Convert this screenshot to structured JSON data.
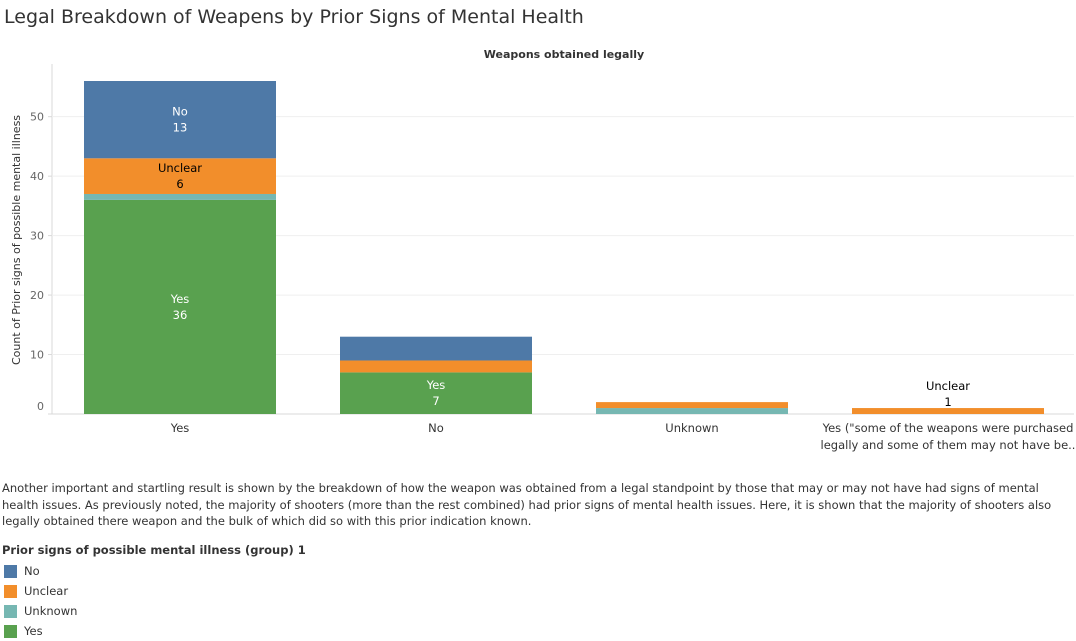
{
  "page": {
    "title": "Legal Breakdown of Weapens by Prior Signs of Mental Health",
    "description": "Another important and startling result is shown by the breakdown of how the weapon was obtained from a legal standpoint by those that may or may not have had signs of mental health issues. As previously noted, the majority of shooters (more than the rest combined) had prior signs of mental health issues. Here, it is shown that the majority of shooters also legally obtained there weapon and the bulk of which did so with this prior indication known."
  },
  "legend": {
    "title": "Prior signs of possible mental illness (group) 1",
    "items": [
      {
        "label": "No",
        "color": "#4e79a7"
      },
      {
        "label": "Unclear",
        "color": "#f28e2b"
      },
      {
        "label": "Unknown",
        "color": "#76b7b2"
      },
      {
        "label": "Yes",
        "color": "#59a14f"
      }
    ]
  },
  "chart_data": {
    "type": "bar",
    "stacked": true,
    "title": "Weapons obtained legally",
    "xlabel": "",
    "ylabel": "Count of Prior signs of possible mental illness",
    "ylim": [
      0,
      56
    ],
    "yticks": [
      0,
      10,
      20,
      30,
      40,
      50
    ],
    "grid": true,
    "legend_position": "bottom-left",
    "categories": [
      [
        "Yes"
      ],
      [
        "No"
      ],
      [
        "Unknown"
      ],
      [
        "Yes (\"some of the weapons were purchased",
        "legally and some of them may not have be.."
      ]
    ],
    "series": [
      {
        "name": "Yes",
        "color": "#59a14f",
        "values": [
          36,
          7,
          0,
          0
        ]
      },
      {
        "name": "Unknown",
        "color": "#76b7b2",
        "values": [
          1,
          0,
          1,
          0
        ]
      },
      {
        "name": "Unclear",
        "color": "#f28e2b",
        "values": [
          6,
          2,
          1,
          1
        ]
      },
      {
        "name": "No",
        "color": "#4e79a7",
        "values": [
          13,
          4,
          0,
          0
        ]
      }
    ],
    "data_labels": [
      {
        "category": 0,
        "series": "No",
        "text": [
          "No",
          "13"
        ],
        "color": "#ffffff"
      },
      {
        "category": 0,
        "series": "Unclear",
        "text": [
          "Unclear",
          "6"
        ],
        "color": "#000000"
      },
      {
        "category": 0,
        "series": "Yes",
        "text": [
          "Yes",
          "36"
        ],
        "color": "#ffffff"
      },
      {
        "category": 1,
        "series": "Yes",
        "text": [
          "Yes",
          "7"
        ],
        "color": "#ffffff"
      },
      {
        "category": 3,
        "series": "Unclear",
        "text": [
          "Unclear",
          "1"
        ],
        "color": "#000000",
        "above": true
      }
    ]
  }
}
